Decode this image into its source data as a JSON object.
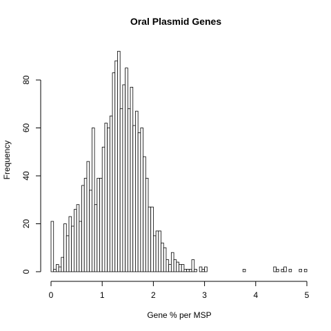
{
  "chart_data": {
    "type": "bar",
    "title": "Oral Plasmid Genes",
    "xlabel": "Gene % per MSP",
    "ylabel": "Frequency",
    "xlim": [
      0,
      5
    ],
    "ylim": [
      0,
      92
    ],
    "xticks": [
      0,
      1,
      2,
      3,
      4,
      5
    ],
    "yticks": [
      0,
      20,
      40,
      60,
      80
    ],
    "bin_width": 0.05,
    "bin_start": 0,
    "values": [
      21,
      1,
      3,
      2,
      6,
      20,
      15,
      23,
      19,
      26,
      28,
      21,
      36,
      39,
      46,
      34,
      60,
      28,
      39,
      39,
      52,
      62,
      60,
      65,
      83,
      88,
      92,
      68,
      78,
      85,
      68,
      77,
      61,
      67,
      58,
      60,
      48,
      39,
      27,
      27,
      15,
      17,
      17,
      12,
      10,
      5,
      3,
      8,
      5,
      4,
      3,
      3,
      1,
      1,
      1,
      5,
      1,
      0,
      2,
      1,
      2,
      0,
      0,
      0,
      0,
      0,
      0,
      0,
      0,
      0,
      0,
      0,
      0,
      0,
      0,
      1,
      0,
      0,
      0,
      0,
      0,
      0,
      0,
      0,
      0,
      0,
      0,
      2,
      1,
      0,
      1,
      2,
      0,
      1,
      0,
      0,
      0,
      1,
      0,
      1
    ],
    "grid": false,
    "legend": "none"
  }
}
